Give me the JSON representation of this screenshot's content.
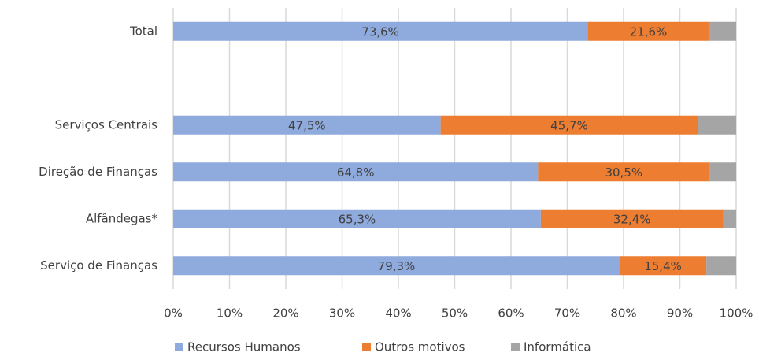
{
  "chart_data": {
    "type": "stacked-bar-horizontal",
    "categories": [
      "Total",
      null,
      "Serviços Centrais",
      "Direção de Finanças",
      "Alfândegas*",
      "Serviço de Finanças"
    ],
    "series": [
      {
        "name": "Recursos Humanos",
        "color": "#8faadc",
        "values": [
          73.6,
          null,
          47.5,
          64.8,
          65.3,
          79.3
        ],
        "value_labels": [
          "73,6%",
          null,
          "47,5%",
          "64,8%",
          "65,3%",
          "79,3%"
        ]
      },
      {
        "name": "Outros motivos",
        "color": "#ed7d31",
        "values": [
          21.6,
          null,
          45.7,
          30.5,
          32.4,
          15.4
        ],
        "value_labels": [
          "21,6%",
          null,
          "45,7%",
          "30,5%",
          "32,4%",
          "15,4%"
        ]
      },
      {
        "name": "Informática",
        "color": "#a5a5a5",
        "values": [
          4.8,
          null,
          6.8,
          4.7,
          2.3,
          5.3
        ]
      }
    ],
    "xlim": [
      0,
      100
    ],
    "xticks": [
      {
        "value": 0,
        "label": "0%"
      },
      {
        "value": 10,
        "label": "10%"
      },
      {
        "value": 20,
        "label": "20%"
      },
      {
        "value": 30,
        "label": "30%"
      },
      {
        "value": 40,
        "label": "40%"
      },
      {
        "value": 50,
        "label": "50%"
      },
      {
        "value": 60,
        "label": "60%"
      },
      {
        "value": 70,
        "label": "70%"
      },
      {
        "value": 80,
        "label": "80%"
      },
      {
        "value": 90,
        "label": "90%"
      },
      {
        "value": 100,
        "label": "100%"
      }
    ],
    "grid": true,
    "legend": "bottom"
  }
}
